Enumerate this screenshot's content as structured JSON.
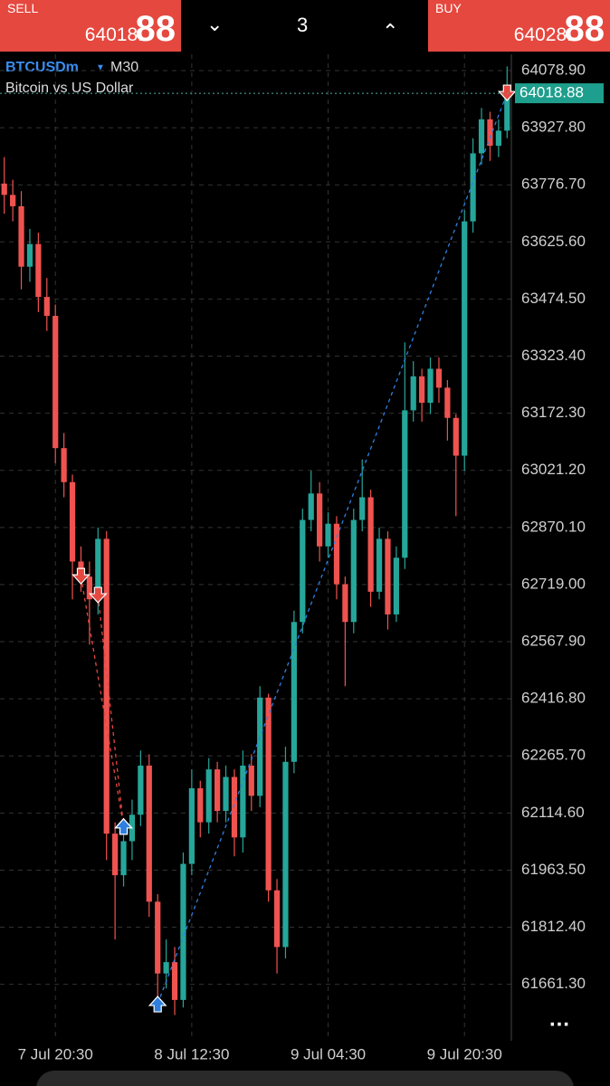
{
  "header": {
    "sell_label": "SELL",
    "sell_price": "64018.",
    "sell_digits": "88",
    "lot": "3",
    "buy_label": "BUY",
    "buy_price": "64028.",
    "buy_digits": "88"
  },
  "chart_data": {
    "type": "candlestick",
    "symbol": "BTCUSDm",
    "timeframe": "M30",
    "title": "Bitcoin vs US Dollar",
    "current_price": {
      "value": 64018.88,
      "label": "64018.88"
    },
    "ylim": [
      61512,
      64122
    ],
    "yticks": [
      {
        "value": 64078.9,
        "label": "64078.90"
      },
      {
        "value": 63927.8,
        "label": "63927.80"
      },
      {
        "value": 63776.7,
        "label": "63776.70"
      },
      {
        "value": 63625.6,
        "label": "63625.60"
      },
      {
        "value": 63474.5,
        "label": "63474.50"
      },
      {
        "value": 63323.4,
        "label": "63323.40"
      },
      {
        "value": 63172.3,
        "label": "63172.30"
      },
      {
        "value": 63021.2,
        "label": "63021.20"
      },
      {
        "value": 62870.1,
        "label": "62870.10"
      },
      {
        "value": 62719,
        "label": "62719.00"
      },
      {
        "value": 62567.9,
        "label": "62567.90"
      },
      {
        "value": 62416.8,
        "label": "62416.80"
      },
      {
        "value": 62265.7,
        "label": "62265.70"
      },
      {
        "value": 62114.6,
        "label": "62114.60"
      },
      {
        "value": 61963.5,
        "label": "61963.50"
      },
      {
        "value": 61812.4,
        "label": "61812.40"
      },
      {
        "value": 61661.3,
        "label": "61661.30"
      }
    ],
    "categories": [
      null,
      null,
      null,
      null,
      null,
      null,
      "7 Jul 20:30",
      null,
      null,
      null,
      null,
      null,
      null,
      null,
      null,
      null,
      null,
      null,
      null,
      null,
      null,
      null,
      "8 Jul 12:30",
      null,
      null,
      null,
      null,
      null,
      null,
      null,
      null,
      null,
      null,
      null,
      null,
      null,
      null,
      null,
      "9 Jul 04:30",
      null,
      null,
      null,
      null,
      null,
      null,
      null,
      null,
      null,
      null,
      null,
      null,
      null,
      null,
      null,
      "9 Jul 20:30",
      null,
      null,
      null,
      null,
      null
    ],
    "open": [
      63780,
      63750,
      63720,
      63560,
      63620,
      63480,
      63430,
      63080,
      62990,
      62780,
      62740,
      62680,
      62840,
      62060,
      61950,
      62040,
      62110,
      62240,
      61880,
      61690,
      61720,
      61620,
      61980,
      62180,
      62090,
      62230,
      62120,
      62210,
      62050,
      62240,
      62160,
      62420,
      61910,
      61760,
      62250,
      62620,
      62890,
      62960,
      62820,
      62880,
      62720,
      62620,
      62890,
      62950,
      62700,
      62840,
      62640,
      62790,
      63180,
      63270,
      63200,
      63290,
      63240,
      63160,
      63060,
      63680,
      63860,
      63950,
      63880,
      63920
    ],
    "high": [
      63850,
      63790,
      63760,
      63660,
      63650,
      63530,
      63460,
      63120,
      63010,
      62820,
      62780,
      62870,
      62860,
      62090,
      62070,
      62150,
      62280,
      62270,
      61900,
      61780,
      61760,
      62010,
      62230,
      62200,
      62260,
      62250,
      62240,
      62230,
      62280,
      62270,
      62450,
      62430,
      61940,
      62290,
      62650,
      62920,
      63020,
      62990,
      62910,
      62900,
      62740,
      62920,
      63050,
      62970,
      62870,
      62860,
      62820,
      63360,
      63310,
      63290,
      63320,
      63320,
      63260,
      63170,
      63710,
      63900,
      63980,
      63970,
      63950,
      64090
    ],
    "low": [
      63700,
      63680,
      63500,
      63520,
      63440,
      63390,
      63040,
      62950,
      62680,
      62700,
      62560,
      62640,
      61990,
      61780,
      61920,
      61990,
      62080,
      61840,
      61620,
      61650,
      61580,
      61600,
      61950,
      62050,
      62060,
      62090,
      62090,
      62000,
      62010,
      62120,
      62130,
      61880,
      61690,
      61730,
      62220,
      62590,
      62860,
      62780,
      62790,
      62680,
      62450,
      62590,
      62860,
      62660,
      62680,
      62600,
      62620,
      62760,
      63150,
      63150,
      63170,
      63200,
      63100,
      62900,
      63020,
      63650,
      63830,
      63840,
      63850,
      63900
    ],
    "close": [
      63750,
      63720,
      63560,
      63620,
      63480,
      63430,
      63080,
      62990,
      62780,
      62740,
      62680,
      62840,
      62060,
      61950,
      62040,
      62110,
      62240,
      61880,
      61690,
      61720,
      61620,
      61980,
      62180,
      62090,
      62230,
      62120,
      62210,
      62050,
      62240,
      62160,
      62420,
      61910,
      61760,
      62250,
      62620,
      62890,
      62960,
      62820,
      62880,
      62720,
      62620,
      62890,
      62950,
      62700,
      62840,
      62640,
      62790,
      63180,
      63270,
      63200,
      63290,
      63240,
      63160,
      63060,
      63680,
      63860,
      63950,
      63880,
      63920,
      64018.88
    ],
    "up_color": "#26a69a",
    "down_color": "#ef5350",
    "grid": true,
    "trades": [
      {
        "direction": "sell",
        "color": "#e5483f",
        "x": [
          9,
          14
        ],
        "price": [
          62740,
          62080
        ]
      },
      {
        "direction": "sell",
        "color": "#e5483f",
        "x": [
          11,
          14
        ],
        "price": [
          62690,
          62080
        ]
      },
      {
        "direction": "buy",
        "color": "#2f7fe0",
        "x": [
          18,
          59
        ],
        "price": [
          61610,
          64018.88
        ]
      }
    ]
  }
}
